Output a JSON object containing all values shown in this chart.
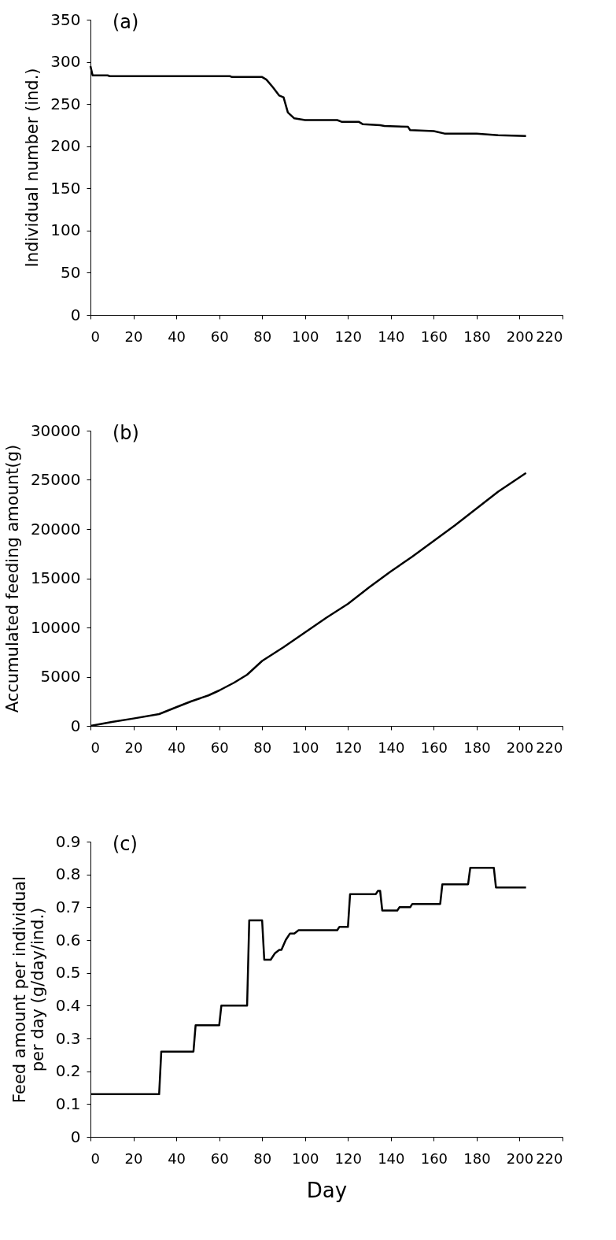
{
  "chart_data": [
    {
      "type": "line",
      "ylabel": "Individual number (ind.)",
      "annotations": [
        "(a)"
      ],
      "x": [
        0,
        1,
        8,
        9,
        65,
        66,
        80,
        82,
        85,
        88,
        90,
        92,
        95,
        100,
        115,
        117,
        125,
        127,
        135,
        137,
        148,
        149,
        160,
        165,
        180,
        190,
        203
      ],
      "series": [
        {
          "color": "#000000",
          "values": [
            295,
            284,
            284,
            283,
            283,
            282,
            282,
            279,
            270,
            260,
            258,
            240,
            233,
            231,
            231,
            229,
            229,
            226,
            225,
            224,
            223,
            219,
            218,
            215,
            215,
            213,
            212
          ]
        }
      ],
      "xlim": [
        0,
        220
      ],
      "xticks": [
        0,
        20,
        40,
        60,
        80,
        100,
        120,
        140,
        160,
        180,
        200,
        220
      ],
      "ylim": [
        0,
        350
      ],
      "yticks": [
        0,
        50,
        100,
        150,
        200,
        250,
        300,
        350
      ],
      "grid": false,
      "legend": false,
      "marker": "none",
      "line_style": "solid"
    },
    {
      "type": "line",
      "ylabel": "Accumulated feeding amount(g)",
      "annotations": [
        "(b)"
      ],
      "x": [
        0,
        10,
        20,
        32,
        40,
        47,
        55,
        60,
        67,
        73,
        80,
        90,
        100,
        110,
        120,
        130,
        140,
        150,
        160,
        170,
        180,
        190,
        203
      ],
      "series": [
        {
          "color": "#000000",
          "values": [
            0,
            400,
            750,
            1200,
            1900,
            2500,
            3100,
            3600,
            4400,
            5200,
            6600,
            8000,
            9500,
            11000,
            12400,
            14100,
            15700,
            17200,
            18800,
            20400,
            22100,
            23800,
            25700
          ]
        }
      ],
      "xlim": [
        0,
        220
      ],
      "xticks": [
        0,
        20,
        40,
        60,
        80,
        100,
        120,
        140,
        160,
        180,
        200,
        220
      ],
      "ylim": [
        0,
        30000
      ],
      "yticks": [
        0,
        5000,
        10000,
        15000,
        20000,
        25000,
        30000
      ],
      "grid": false,
      "legend": false,
      "marker": "none",
      "line_style": "solid"
    },
    {
      "type": "line",
      "xlabel": "Day",
      "ylabel": "Feed amount per individual per day (g/day/ind.)",
      "annotations": [
        "(c)"
      ],
      "x": [
        0,
        32,
        33,
        48,
        49,
        60,
        61,
        73,
        74,
        80,
        81,
        84,
        86,
        88,
        89,
        91,
        93,
        95,
        97,
        115,
        116,
        120,
        121,
        133,
        134,
        135,
        136,
        143,
        144,
        149,
        150,
        163,
        164,
        176,
        177,
        188,
        189,
        203
      ],
      "series": [
        {
          "color": "#000000",
          "values": [
            0.13,
            0.13,
            0.26,
            0.26,
            0.34,
            0.34,
            0.4,
            0.4,
            0.66,
            0.66,
            0.54,
            0.54,
            0.56,
            0.57,
            0.57,
            0.6,
            0.62,
            0.62,
            0.63,
            0.63,
            0.64,
            0.64,
            0.74,
            0.74,
            0.75,
            0.75,
            0.69,
            0.69,
            0.7,
            0.7,
            0.71,
            0.71,
            0.77,
            0.77,
            0.82,
            0.82,
            0.76,
            0.76
          ]
        }
      ],
      "xlim": [
        0,
        220
      ],
      "xticks": [
        0,
        20,
        40,
        60,
        80,
        100,
        120,
        140,
        160,
        180,
        200,
        220
      ],
      "ylim": [
        0,
        0.9
      ],
      "yticks": [
        0,
        0.1,
        0.2,
        0.3,
        0.4,
        0.5,
        0.6,
        0.7,
        0.8,
        0.9
      ],
      "grid": false,
      "legend": false,
      "marker": "none",
      "line_style": "solid"
    }
  ]
}
